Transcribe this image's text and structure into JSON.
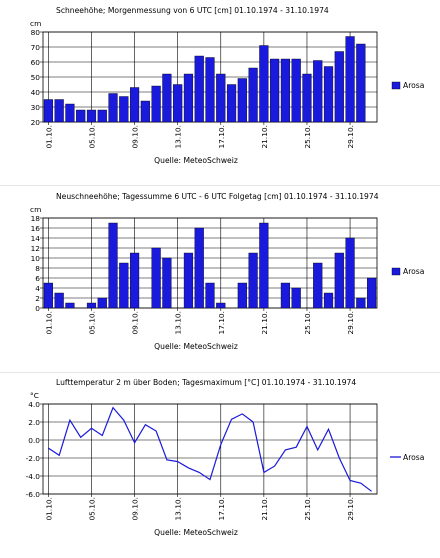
{
  "chart_data": [
    {
      "type": "bar",
      "title": "Schneehöhe; Morgenmessung von 6 UTC [cm]  01.10.1974 - 31.10.1974",
      "ylabel": "cm",
      "ylim": [
        20,
        80
      ],
      "yticks": [
        "20",
        "30",
        "40",
        "50",
        "60",
        "70",
        "80"
      ],
      "xticks": [
        "01.10.",
        "05.10.",
        "09.10.",
        "13.10.",
        "17.10.",
        "21.10.",
        "25.10.",
        "29.10."
      ],
      "source": "Quelle: MeteoSchweiz",
      "color": "#1a1adc",
      "series": [
        {
          "name": "Arosa",
          "values": [
            35,
            35,
            32,
            28,
            28,
            28,
            39,
            37,
            43,
            34,
            44,
            52,
            45,
            52,
            64,
            63,
            52,
            45,
            49,
            56,
            71,
            62,
            62,
            62,
            52,
            61,
            57,
            67,
            77,
            72
          ]
        }
      ]
    },
    {
      "type": "bar",
      "title": "Neuschneehöhe; Tagessumme 6 UTC - 6 UTC Folgetag [cm]  01.10.1974 - 31.10.1974",
      "ylabel": "cm",
      "ylim": [
        0,
        18
      ],
      "yticks": [
        "0",
        "2",
        "4",
        "6",
        "8",
        "10",
        "12",
        "14",
        "16",
        "18"
      ],
      "xticks": [
        "01.10.",
        "05.10.",
        "09.10.",
        "13.10.",
        "17.10.",
        "21.10.",
        "25.10.",
        "29.10."
      ],
      "source": "Quelle: MeteoSchweiz",
      "color": "#1a1adc",
      "series": [
        {
          "name": "Arosa",
          "values": [
            5,
            3,
            1,
            0,
            1,
            2,
            17,
            9,
            11,
            0,
            12,
            10,
            0,
            11,
            16,
            5,
            1,
            0,
            5,
            11,
            17,
            0,
            5,
            4,
            0,
            9,
            3,
            11,
            14,
            2,
            6
          ]
        }
      ]
    },
    {
      "type": "line",
      "title": "Lufttemperatur 2 m über Boden; Tagesmaximum [°C]  01.10.1974 - 31.10.1974",
      "ylabel": "°C",
      "ylim": [
        -6,
        4
      ],
      "yticks": [
        "-6.0",
        "-4.0",
        "-2.0",
        "0.0",
        "2.0",
        "4.0"
      ],
      "xticks": [
        "01.10.",
        "05.10.",
        "09.10.",
        "13.10.",
        "17.10.",
        "21.10.",
        "25.10.",
        "29.10."
      ],
      "source": "Quelle: MeteoSchweiz",
      "color": "#1a1adc",
      "series": [
        {
          "name": "Arosa",
          "values": [
            -0.9,
            -1.7,
            2.2,
            0.3,
            1.3,
            0.5,
            3.6,
            2.2,
            -0.3,
            1.7,
            1.0,
            -2.2,
            -2.4,
            -3.1,
            -3.6,
            -4.4,
            -0.5,
            2.3,
            2.9,
            2.0,
            -3.6,
            -2.9,
            -1.1,
            -0.8,
            1.5,
            -1.1,
            1.2,
            -2.0,
            -4.5,
            -4.8,
            -5.7
          ]
        }
      ]
    }
  ]
}
